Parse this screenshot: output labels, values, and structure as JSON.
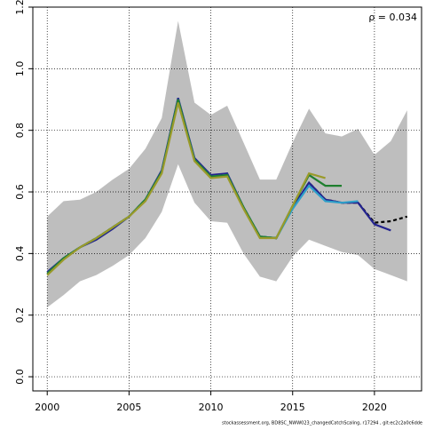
{
  "chart_data": {
    "type": "line",
    "annotation": "ρ = 0.034",
    "footnote": "stockassessment.org, BD8SC_NWW023_changedCatchScaling, r17294 , git:ec2c2a0c6dde",
    "x": [
      2000,
      2001,
      2002,
      2003,
      2004,
      2005,
      2006,
      2007,
      2008,
      2009,
      2010,
      2011,
      2012,
      2013,
      2014,
      2015,
      2016,
      2017,
      2018,
      2019,
      2020,
      2021,
      2022
    ],
    "band": {
      "color": "#bebebe",
      "upper": [
        0.52,
        0.57,
        0.575,
        0.6,
        0.64,
        0.675,
        0.74,
        0.84,
        1.155,
        0.89,
        0.85,
        0.88,
        0.76,
        0.64,
        0.64,
        0.76,
        0.87,
        0.79,
        0.78,
        0.805,
        0.72,
        0.765,
        0.865
      ],
      "lower": [
        0.225,
        0.265,
        0.31,
        0.33,
        0.36,
        0.395,
        0.45,
        0.535,
        0.69,
        0.565,
        0.505,
        0.5,
        0.4,
        0.325,
        0.31,
        0.39,
        0.445,
        0.425,
        0.405,
        0.395,
        0.35,
        0.33,
        0.31
      ]
    },
    "series": [
      {
        "color": "#000000",
        "dashed": true,
        "values": [
          0.335,
          0.385,
          0.42,
          0.45,
          0.485,
          0.52,
          0.575,
          0.665,
          0.9,
          0.705,
          0.65,
          0.655,
          0.55,
          0.455,
          0.45,
          0.55,
          0.63,
          0.575,
          0.565,
          0.565,
          0.5,
          0.505,
          0.52
        ]
      },
      {
        "color": "#23238e",
        "values": [
          0.34,
          0.385,
          0.42,
          0.445,
          0.48,
          0.52,
          0.575,
          0.67,
          0.905,
          0.71,
          0.655,
          0.66,
          0.55,
          0.455,
          0.45,
          0.55,
          0.63,
          0.575,
          0.565,
          0.565,
          0.495,
          0.475,
          null
        ]
      },
      {
        "color": "#2e9fc8",
        "values": [
          0.335,
          0.385,
          0.42,
          0.45,
          0.485,
          0.52,
          0.575,
          0.665,
          0.9,
          0.705,
          0.65,
          0.655,
          0.55,
          0.455,
          0.45,
          0.545,
          0.62,
          0.57,
          0.565,
          0.57,
          null,
          null,
          null
        ]
      },
      {
        "color": "#1f7f2f",
        "values": [
          0.335,
          0.385,
          0.42,
          0.45,
          0.485,
          0.52,
          0.575,
          0.665,
          0.9,
          0.705,
          0.65,
          0.655,
          0.55,
          0.455,
          0.45,
          0.555,
          0.655,
          0.62,
          0.62,
          null,
          null,
          null,
          null
        ]
      },
      {
        "color": "#9a9a2a",
        "values": [
          0.33,
          0.38,
          0.42,
          0.45,
          0.485,
          0.52,
          0.57,
          0.66,
          0.89,
          0.7,
          0.645,
          0.65,
          0.545,
          0.45,
          0.45,
          0.555,
          0.66,
          0.645,
          null,
          null,
          null,
          null,
          null
        ]
      }
    ],
    "xlim": [
      1999.12,
      2022.88
    ],
    "ylim": [
      -0.046,
      1.2
    ],
    "xticks": [
      2000,
      2005,
      2010,
      2015,
      2020
    ],
    "yticks": [
      {
        "value": 0,
        "label": "0.0"
      },
      {
        "value": 0.2,
        "label": "0.2"
      },
      {
        "value": 0.4,
        "label": "0.4"
      },
      {
        "value": 0.6,
        "label": "0.6"
      },
      {
        "value": 0.8,
        "label": "0.8"
      },
      {
        "value": 1,
        "label": "1.0"
      },
      {
        "value": 1.2,
        "label": "1.2"
      }
    ],
    "grid": true
  }
}
